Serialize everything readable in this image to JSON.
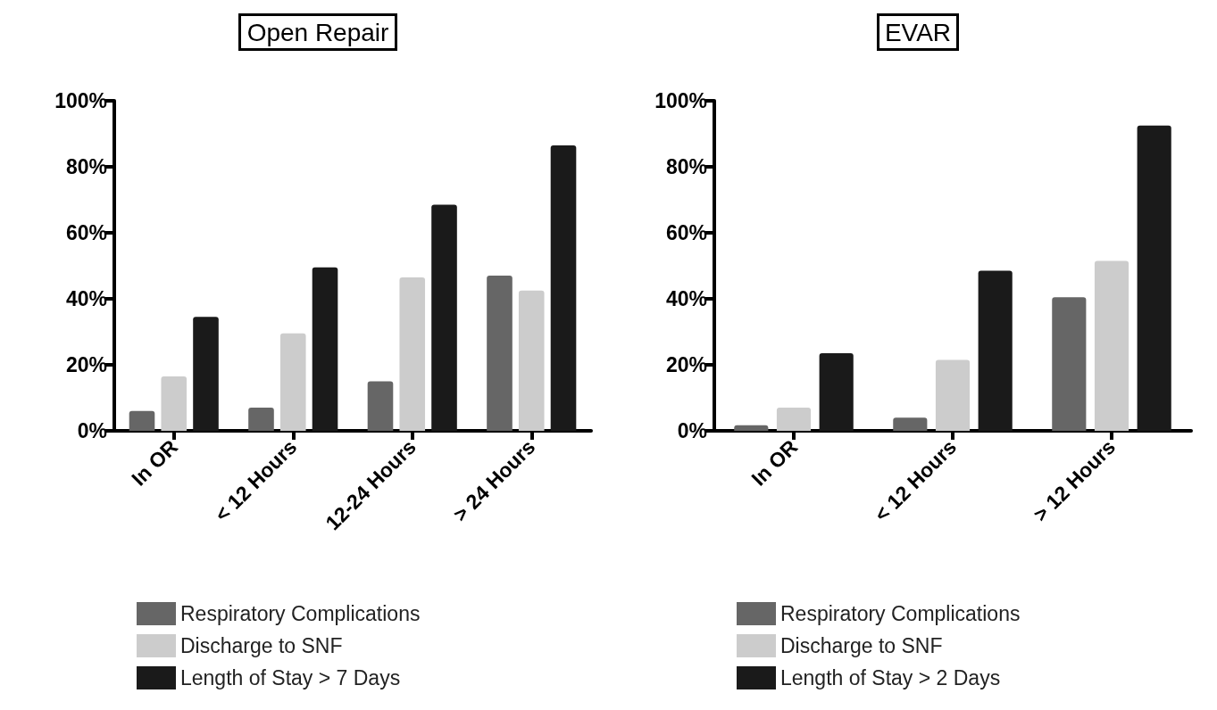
{
  "chart_data": [
    {
      "type": "bar",
      "title": "Open Repair",
      "categories": [
        "In OR",
        "< 12 Hours",
        "12-24 Hours",
        "> 24 Hours"
      ],
      "series": [
        {
          "name": "Respiratory Complications",
          "color": "#666666",
          "values": [
            6,
            7,
            15,
            47
          ]
        },
        {
          "name": "Discharge to SNF",
          "color": "#cccccc",
          "values": [
            16.5,
            29.5,
            46.5,
            42.5
          ]
        },
        {
          "name": "Length of Stay > 7 Days",
          "color": "#1a1a1a",
          "values": [
            34.5,
            49.5,
            68.5,
            86.5
          ]
        }
      ],
      "ylim": [
        0,
        100
      ],
      "yticks": [
        {
          "value": 0,
          "label": "0%"
        },
        {
          "value": 20,
          "label": "20%"
        },
        {
          "value": 40,
          "label": "40%"
        },
        {
          "value": 60,
          "label": "60%"
        },
        {
          "value": 80,
          "label": "80%"
        },
        {
          "value": 100,
          "label": "100%"
        }
      ],
      "grid": false,
      "legend": "bottom"
    },
    {
      "type": "bar",
      "title": "EVAR",
      "categories": [
        "In OR",
        "< 12 Hours",
        "> 12 Hours"
      ],
      "series": [
        {
          "name": "Respiratory Complications",
          "color": "#666666",
          "values": [
            1.7,
            4,
            40.5
          ]
        },
        {
          "name": "Discharge to SNF",
          "color": "#cccccc",
          "values": [
            7,
            21.5,
            51.5
          ]
        },
        {
          "name": "Length of Stay > 2 Days",
          "color": "#1a1a1a",
          "values": [
            23.5,
            48.5,
            92.5
          ]
        }
      ],
      "ylim": [
        0,
        100
      ],
      "yticks": [
        {
          "value": 0,
          "label": "0%"
        },
        {
          "value": 20,
          "label": "20%"
        },
        {
          "value": 40,
          "label": "40%"
        },
        {
          "value": 60,
          "label": "60%"
        },
        {
          "value": 80,
          "label": "80%"
        },
        {
          "value": 100,
          "label": "100%"
        }
      ],
      "grid": false,
      "legend": "bottom"
    }
  ]
}
